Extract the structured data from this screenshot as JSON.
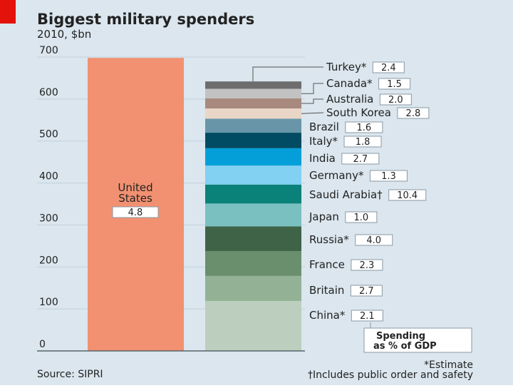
{
  "chart_data": {
    "type": "bar",
    "title": "Biggest military spenders",
    "subtitle": "2010, $bn",
    "ylim": [
      0,
      700
    ],
    "yticks": [
      0,
      100,
      200,
      300,
      400,
      500,
      600,
      700
    ],
    "us_bar": {
      "label_line1": "United",
      "label_line2": "States",
      "value": 698,
      "gdp_pct": "4.8"
    },
    "stack": [
      {
        "name": "China*",
        "value": 119,
        "gdp_pct": "2.1",
        "color": "#bccfbf"
      },
      {
        "name": "Britain",
        "value": 59.6,
        "gdp_pct": "2.7",
        "color": "#93b295"
      },
      {
        "name": "France",
        "value": 59.3,
        "gdp_pct": "2.3",
        "color": "#6a8f6c"
      },
      {
        "name": "Russia*",
        "value": 58.7,
        "gdp_pct": "4.0",
        "color": "#3e6346"
      },
      {
        "name": "Japan",
        "value": 54.5,
        "gdp_pct": "1.0",
        "color": "#7ac0c0"
      },
      {
        "name": "Saudi Arabia†",
        "value": 45.2,
        "gdp_pct": "10.4",
        "color": "#0a8279"
      },
      {
        "name": "Germany*",
        "value": 45.2,
        "gdp_pct": "1.3",
        "color": "#82d0f2"
      },
      {
        "name": "India",
        "value": 41.3,
        "gdp_pct": "2.7",
        "color": "#049fd9"
      },
      {
        "name": "Italy*",
        "value": 37.0,
        "gdp_pct": "1.8",
        "color": "#024c63"
      },
      {
        "name": "Brazil",
        "value": 33.5,
        "gdp_pct": "1.6",
        "color": "#6896a8"
      },
      {
        "name": "South Korea",
        "value": 24.3,
        "gdp_pct": "2.8",
        "color": "#e9d6c6"
      },
      {
        "name": "Australia",
        "value": 24.0,
        "gdp_pct": "2.0",
        "color": "#a78a7d"
      },
      {
        "name": "Canada*",
        "value": 22.8,
        "gdp_pct": "1.5",
        "color": "#c2c2c2"
      },
      {
        "name": "Turkey*",
        "value": 17.5,
        "gdp_pct": "2.4",
        "color": "#6d6d6d"
      }
    ],
    "legend_box_line1": "Spending",
    "legend_box_line2": "as % of GDP",
    "source": "Source: SIPRI",
    "note_estimate": "*Estimate",
    "note_dagger": "†Includes public order and safety"
  },
  "colors": {
    "background": "#dbe6ee",
    "us_bar": "#f19171",
    "grid": "#c3d1db",
    "axis": "#58646b",
    "text": "#222222",
    "accent": "#e3120b"
  }
}
